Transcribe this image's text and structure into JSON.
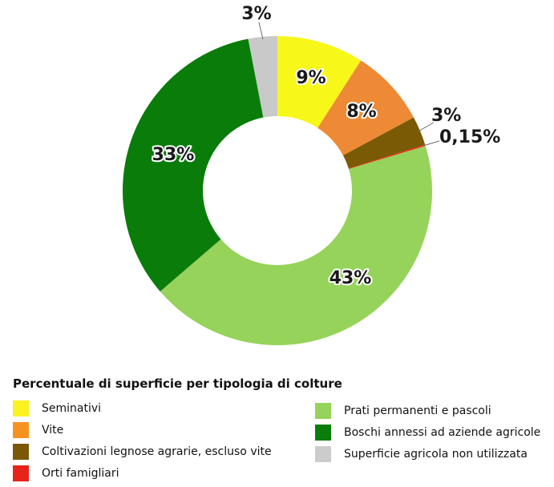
{
  "chart_data": {
    "type": "pie",
    "donut": true,
    "categories": [
      "Seminativi",
      "Vite",
      "Coltivazioni legnose agrarie, escluso vite",
      "Orti famigliari",
      "Prati permanenti e pascoli",
      "Boschi annessi ad aziende agricole",
      "Superficie agricola non utilizzata"
    ],
    "values": [
      9,
      8,
      3,
      0.15,
      43,
      33,
      3
    ],
    "colors": [
      "#f7f71a",
      "#ee8a35",
      "#7a5a05",
      "#e8231a",
      "#96d35a",
      "#0a7c0a",
      "#c9c9c9"
    ],
    "data_labels": [
      "9%",
      "8%",
      "3%",
      "0,15%",
      "43%",
      "33%",
      "3%"
    ],
    "legend_title": "Percentuale di superficie per tipologia di colture",
    "legend_placement": "bottom"
  },
  "legend": {
    "title": "Percentuale di superficie per tipologia di colture",
    "items": [
      {
        "label": "Seminativi",
        "color": "#fcf21f"
      },
      {
        "label": "Vite",
        "color": "#f6931e"
      },
      {
        "label": "Coltivazioni legnose agrarie, escluso vite",
        "color": "#7b5706"
      },
      {
        "label": "Orti famigliari",
        "color": "#e8231a"
      },
      {
        "label": "Prati permanenti e pascoli",
        "color": "#96d35a"
      },
      {
        "label": "Boschi annessi ad aziende agricole",
        "color": "#0a7c0a"
      },
      {
        "label": "Superficie agricola non utilizzata",
        "color": "#cccccc"
      }
    ]
  }
}
